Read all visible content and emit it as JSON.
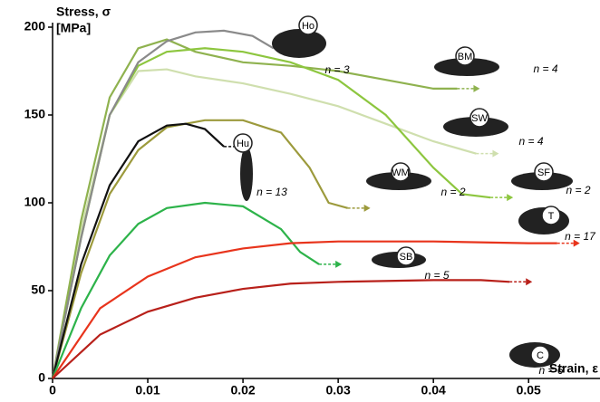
{
  "chart_data": {
    "type": "line",
    "y_label": "Stress, σ",
    "y_unit": "[MPa]",
    "x_label": "Strain, ε",
    "xlim": [
      0,
      0.0575
    ],
    "ylim": [
      0,
      200
    ],
    "xticks": [
      0,
      0.01,
      0.02,
      0.03,
      0.04,
      0.05
    ],
    "yticks": [
      0,
      50,
      100,
      150,
      200
    ],
    "series": [
      {
        "name": "SW",
        "n_label": "n = 4",
        "color": "#cfdfae",
        "x": [
          0,
          0.003,
          0.006,
          0.009,
          0.012,
          0.015,
          0.02,
          0.025,
          0.03,
          0.035,
          0.04,
          0.0445
        ],
        "values": [
          0,
          85,
          150,
          175,
          176,
          172,
          168,
          162,
          155,
          145,
          135,
          128
        ]
      },
      {
        "name": "BM",
        "n_label": "n = 4",
        "color": "#8fb24f",
        "x": [
          0,
          0.003,
          0.006,
          0.009,
          0.012,
          0.015,
          0.02,
          0.025,
          0.03,
          0.035,
          0.04,
          0.0425
        ],
        "values": [
          0,
          90,
          160,
          188,
          193,
          186,
          180,
          178,
          175,
          170,
          165,
          165
        ]
      },
      {
        "name": "SF",
        "n_label": "n = 2",
        "color": "#8dc63f",
        "x": [
          0,
          0.003,
          0.006,
          0.009,
          0.012,
          0.016,
          0.02,
          0.025,
          0.03,
          0.035,
          0.04,
          0.043,
          0.046
        ],
        "values": [
          0,
          80,
          150,
          178,
          186,
          188,
          186,
          180,
          170,
          150,
          120,
          105,
          103
        ]
      },
      {
        "name": "Ho",
        "n_label": "n = 3",
        "color": "#8a8a8a",
        "x": [
          0,
          0.003,
          0.006,
          0.009,
          0.012,
          0.015,
          0.018,
          0.021,
          0.0232
        ],
        "values": [
          0,
          80,
          150,
          180,
          192,
          197,
          198,
          195,
          188
        ]
      },
      {
        "name": "WM",
        "n_label": "n = 2",
        "color": "#9c9a3c",
        "x": [
          0,
          0.003,
          0.006,
          0.009,
          0.012,
          0.016,
          0.02,
          0.024,
          0.027,
          0.029,
          0.031
        ],
        "values": [
          0,
          60,
          105,
          130,
          143,
          147,
          147,
          140,
          120,
          100,
          97
        ]
      },
      {
        "name": "Hu",
        "n_label": "n = 13",
        "color": "#111111",
        "x": [
          0,
          0.003,
          0.006,
          0.009,
          0.012,
          0.014,
          0.016,
          0.018
        ],
        "values": [
          0,
          65,
          110,
          135,
          144,
          145,
          142,
          132
        ]
      },
      {
        "name": "SB",
        "n_label": "n = 5",
        "color": "#2db34a",
        "x": [
          0,
          0.003,
          0.006,
          0.009,
          0.012,
          0.016,
          0.02,
          0.024,
          0.026,
          0.028
        ],
        "values": [
          0,
          40,
          70,
          88,
          97,
          100,
          98,
          85,
          72,
          65
        ]
      },
      {
        "name": "T",
        "n_label": "n = 17",
        "color": "#e8341c",
        "x": [
          0,
          0.005,
          0.01,
          0.015,
          0.02,
          0.025,
          0.03,
          0.04,
          0.05,
          0.053
        ],
        "values": [
          0,
          40,
          58,
          69,
          74,
          77,
          78,
          78,
          77,
          77
        ]
      },
      {
        "name": "C",
        "n_label": "n = 6",
        "color": "#b8201a",
        "x": [
          0,
          0.005,
          0.01,
          0.015,
          0.02,
          0.025,
          0.03,
          0.04,
          0.045,
          0.048
        ],
        "values": [
          0,
          25,
          38,
          46,
          51,
          54,
          55,
          56,
          56,
          55
        ]
      }
    ]
  }
}
